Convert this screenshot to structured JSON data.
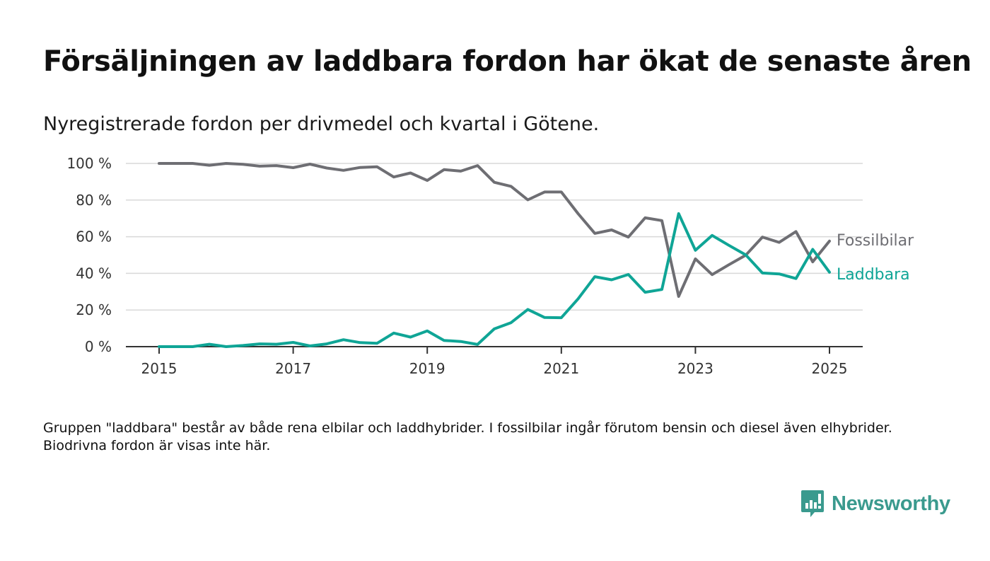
{
  "title": "Försäljningen av laddbara fordon har ökat de senaste åren",
  "subtitle": "Nyregistrerade fordon per drivmedel och kvartal i Götene.",
  "note": "Gruppen \"laddbara\" består av både rena elbilar och laddhybrider. I fossilbilar ingår förutom bensin och diesel även elhybrider. Biodrivna fordon är visas inte här.",
  "brand": "Newsworthy",
  "colors": {
    "fossil": "#6e6e73",
    "laddbara": "#0fa596",
    "grid": "#d9d9d9",
    "axis": "#333333",
    "brand": "#3a9a8e"
  },
  "chart_data": {
    "type": "line",
    "x_start": 2015.0,
    "x_step": 0.25,
    "xlim": [
      2014.75,
      2025.5
    ],
    "ylim": [
      0,
      100
    ],
    "x_ticks": [
      2015,
      2017,
      2019,
      2021,
      2023,
      2025
    ],
    "x_tick_labels": [
      "2015",
      "2017",
      "2019",
      "2021",
      "2023",
      "2025"
    ],
    "y_ticks": [
      0,
      20,
      40,
      60,
      80,
      100
    ],
    "y_tick_labels": [
      "0 %",
      "20 %",
      "40 %",
      "60 %",
      "80 %",
      "100 %"
    ],
    "grid": true,
    "series": [
      {
        "name": "Fossilbilar",
        "color": "#6e6e73",
        "values": [
          100,
          100,
          100,
          99,
          100,
          99.5,
          98.5,
          98.8,
          97.7,
          99.6,
          97.5,
          96.2,
          97.8,
          98.2,
          92.6,
          94.8,
          90.7,
          96.6,
          95.8,
          98.8,
          89.7,
          87.5,
          80.1,
          84.4,
          84.4,
          72.6,
          61.8,
          63.7,
          59.8,
          70.3,
          68.8,
          27.4,
          47.9,
          39.3,
          44.7,
          49.9,
          59.8,
          56.9,
          62.8,
          46.3,
          57.6
        ]
      },
      {
        "name": "Laddbara",
        "color": "#0fa596",
        "values": [
          0,
          0,
          0,
          1.3,
          0,
          0.6,
          1.5,
          1.3,
          2.3,
          0.4,
          1.5,
          3.8,
          2.2,
          1.8,
          7.4,
          5.2,
          8.6,
          3.4,
          2.8,
          1.2,
          9.7,
          13.1,
          20.3,
          15.9,
          15.8,
          26.1,
          38.2,
          36.5,
          39.4,
          29.7,
          31.2,
          72.6,
          52.6,
          60.7,
          55.3,
          50.1,
          40.2,
          39.7,
          37.2,
          53.1,
          40.6
        ]
      }
    ]
  }
}
